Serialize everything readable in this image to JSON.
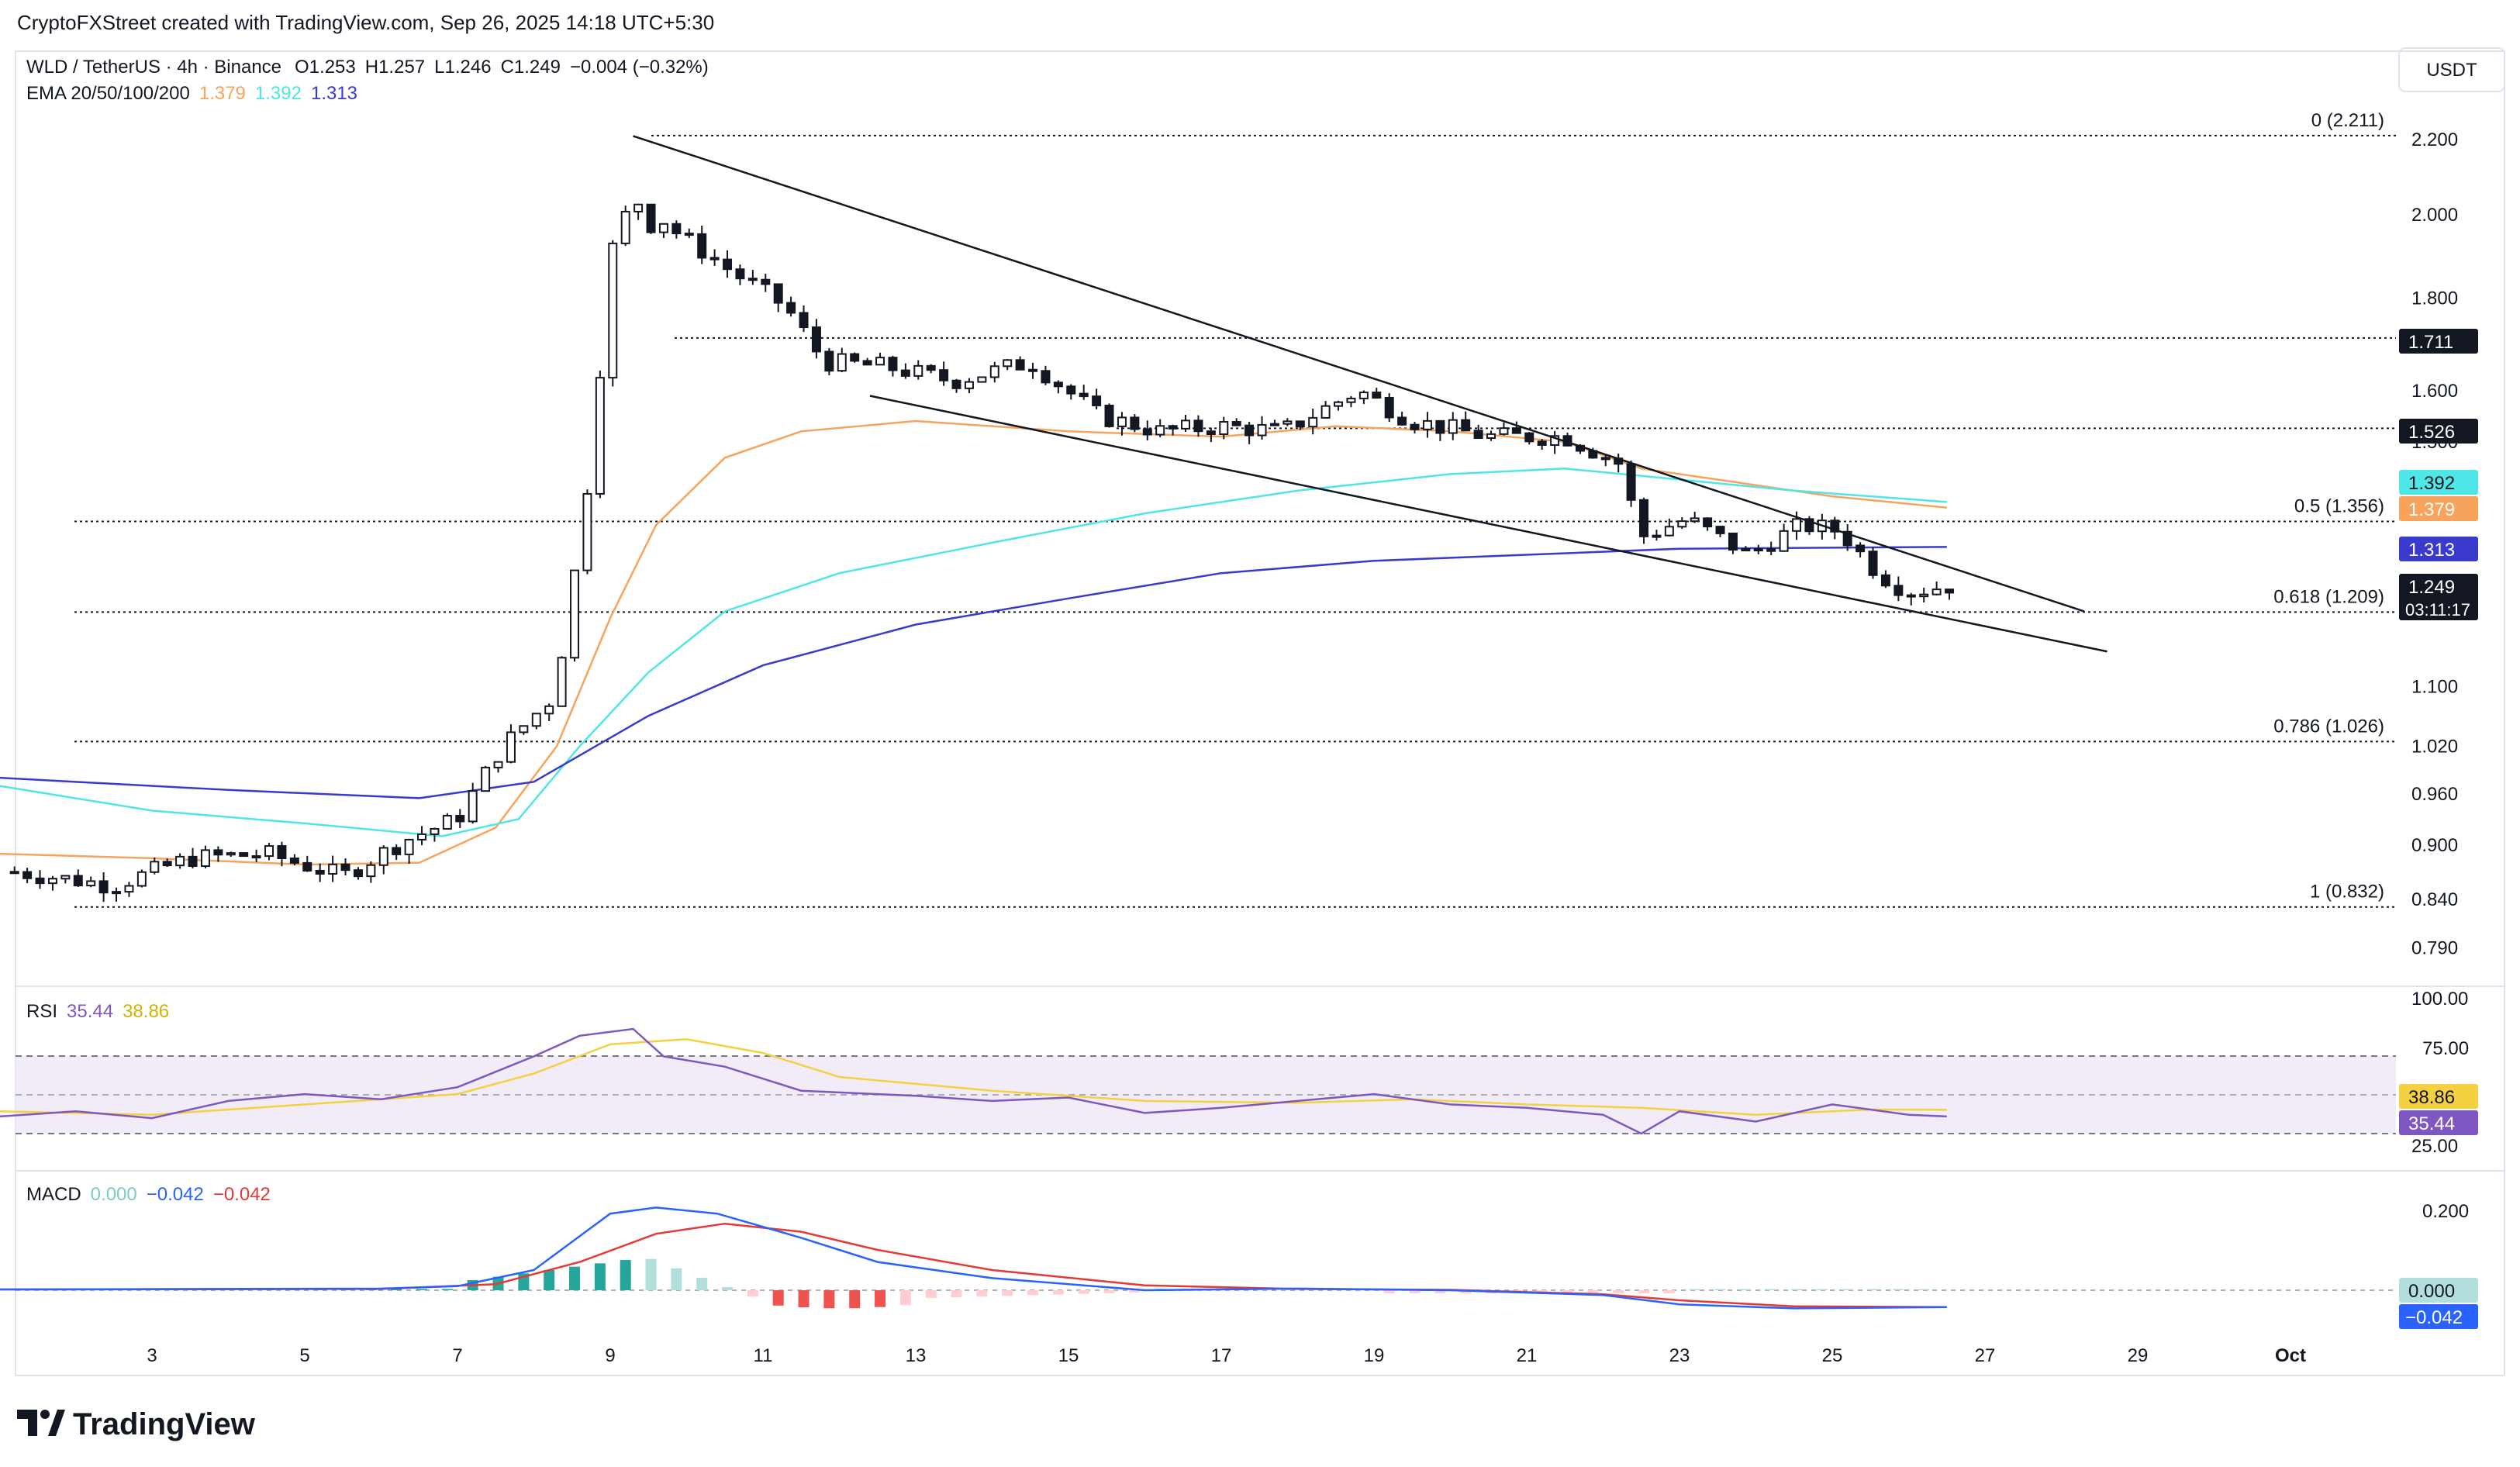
{
  "header": {
    "credit": "CryptoFXStreet created with TradingView.com, Sep 26, 2025 14:18 UTC+5:30",
    "symbol": "WLD / TetherUS · 4h · Binance",
    "ohlc": {
      "o_label": "O",
      "o": "1.253",
      "h_label": "H",
      "h": "1.257",
      "l_label": "L",
      "l": "1.246",
      "c_label": "C",
      "c": "1.249",
      "change": "−0.004 (−0.32%)"
    },
    "ema_label": "EMA 20/50/100/200",
    "ema_values": [
      "1.379",
      "1.392",
      "1.313"
    ],
    "currency_button": "USDT"
  },
  "colors": {
    "up": "#131722",
    "down": "#131722",
    "ema20": "#f7a35c",
    "ema50": "#4ee6e6",
    "ema100": "#3a3acc",
    "rsi_line": "#7e57c2",
    "rsi_ma": "#f5d142",
    "macd_line": "#2962ff",
    "signal_line": "#e53935",
    "hist_pos_strong": "#26a69a",
    "hist_pos_weak": "#b2dfdb",
    "hist_neg_strong": "#ef5350",
    "hist_neg_weak": "#ffcdd2"
  },
  "chart_data": {
    "type": "candlestick",
    "price_axis": {
      "ticks": [
        "2.200",
        "2.000",
        "1.800",
        "1.600",
        "1.500",
        "1.100",
        "1.020",
        "0.960",
        "0.900",
        "0.840",
        "0.790"
      ],
      "scale": "log"
    },
    "time_axis": {
      "ticks": [
        "3",
        "5",
        "7",
        "9",
        "11",
        "13",
        "15",
        "17",
        "19",
        "21",
        "23",
        "25",
        "27",
        "29",
        "Oct"
      ]
    },
    "fib_levels": [
      {
        "label": "0 (2.211)",
        "value": 2.211
      },
      {
        "label": "0.5 (1.356)",
        "value": 1.356
      },
      {
        "label": "0.618 (1.209)",
        "value": 1.209
      },
      {
        "label": "0.786 (1.026)",
        "value": 1.026
      },
      {
        "label": "1 (0.832)",
        "value": 0.832
      }
    ],
    "horizontal_levels": [
      1.711,
      1.526
    ],
    "wedge": {
      "upper": [
        {
          "date": "Sep 9",
          "price": 2.21
        },
        {
          "date": "Sep 28",
          "price": 1.21
        }
      ],
      "lower": [
        {
          "date": "Sep 12",
          "price": 1.59
        },
        {
          "date": "Sep 28",
          "price": 1.15
        }
      ]
    },
    "price_labels": [
      {
        "text": "1.711",
        "style": "dark"
      },
      {
        "text": "1.526",
        "style": "dark"
      },
      {
        "text": "1.392",
        "style": "ema50"
      },
      {
        "text": "1.379",
        "style": "ema20"
      },
      {
        "text": "1.313",
        "style": "ema100"
      },
      {
        "text": "1.249",
        "style": "dark",
        "sub": "03:11:17"
      }
    ],
    "rsi": {
      "label": "RSI",
      "value": "35.44",
      "ma_value": "38.86",
      "ticks": [
        "100.00",
        "75.00",
        "25.00"
      ],
      "badges": [
        "38.86",
        "35.44"
      ]
    },
    "macd": {
      "label": "MACD",
      "values": [
        "0.000",
        "−0.042",
        "−0.042"
      ],
      "ticks": [
        "0.200"
      ],
      "badges": [
        "0.000",
        "−0.042"
      ]
    }
  },
  "footer": {
    "logo_text": "TradingView"
  }
}
